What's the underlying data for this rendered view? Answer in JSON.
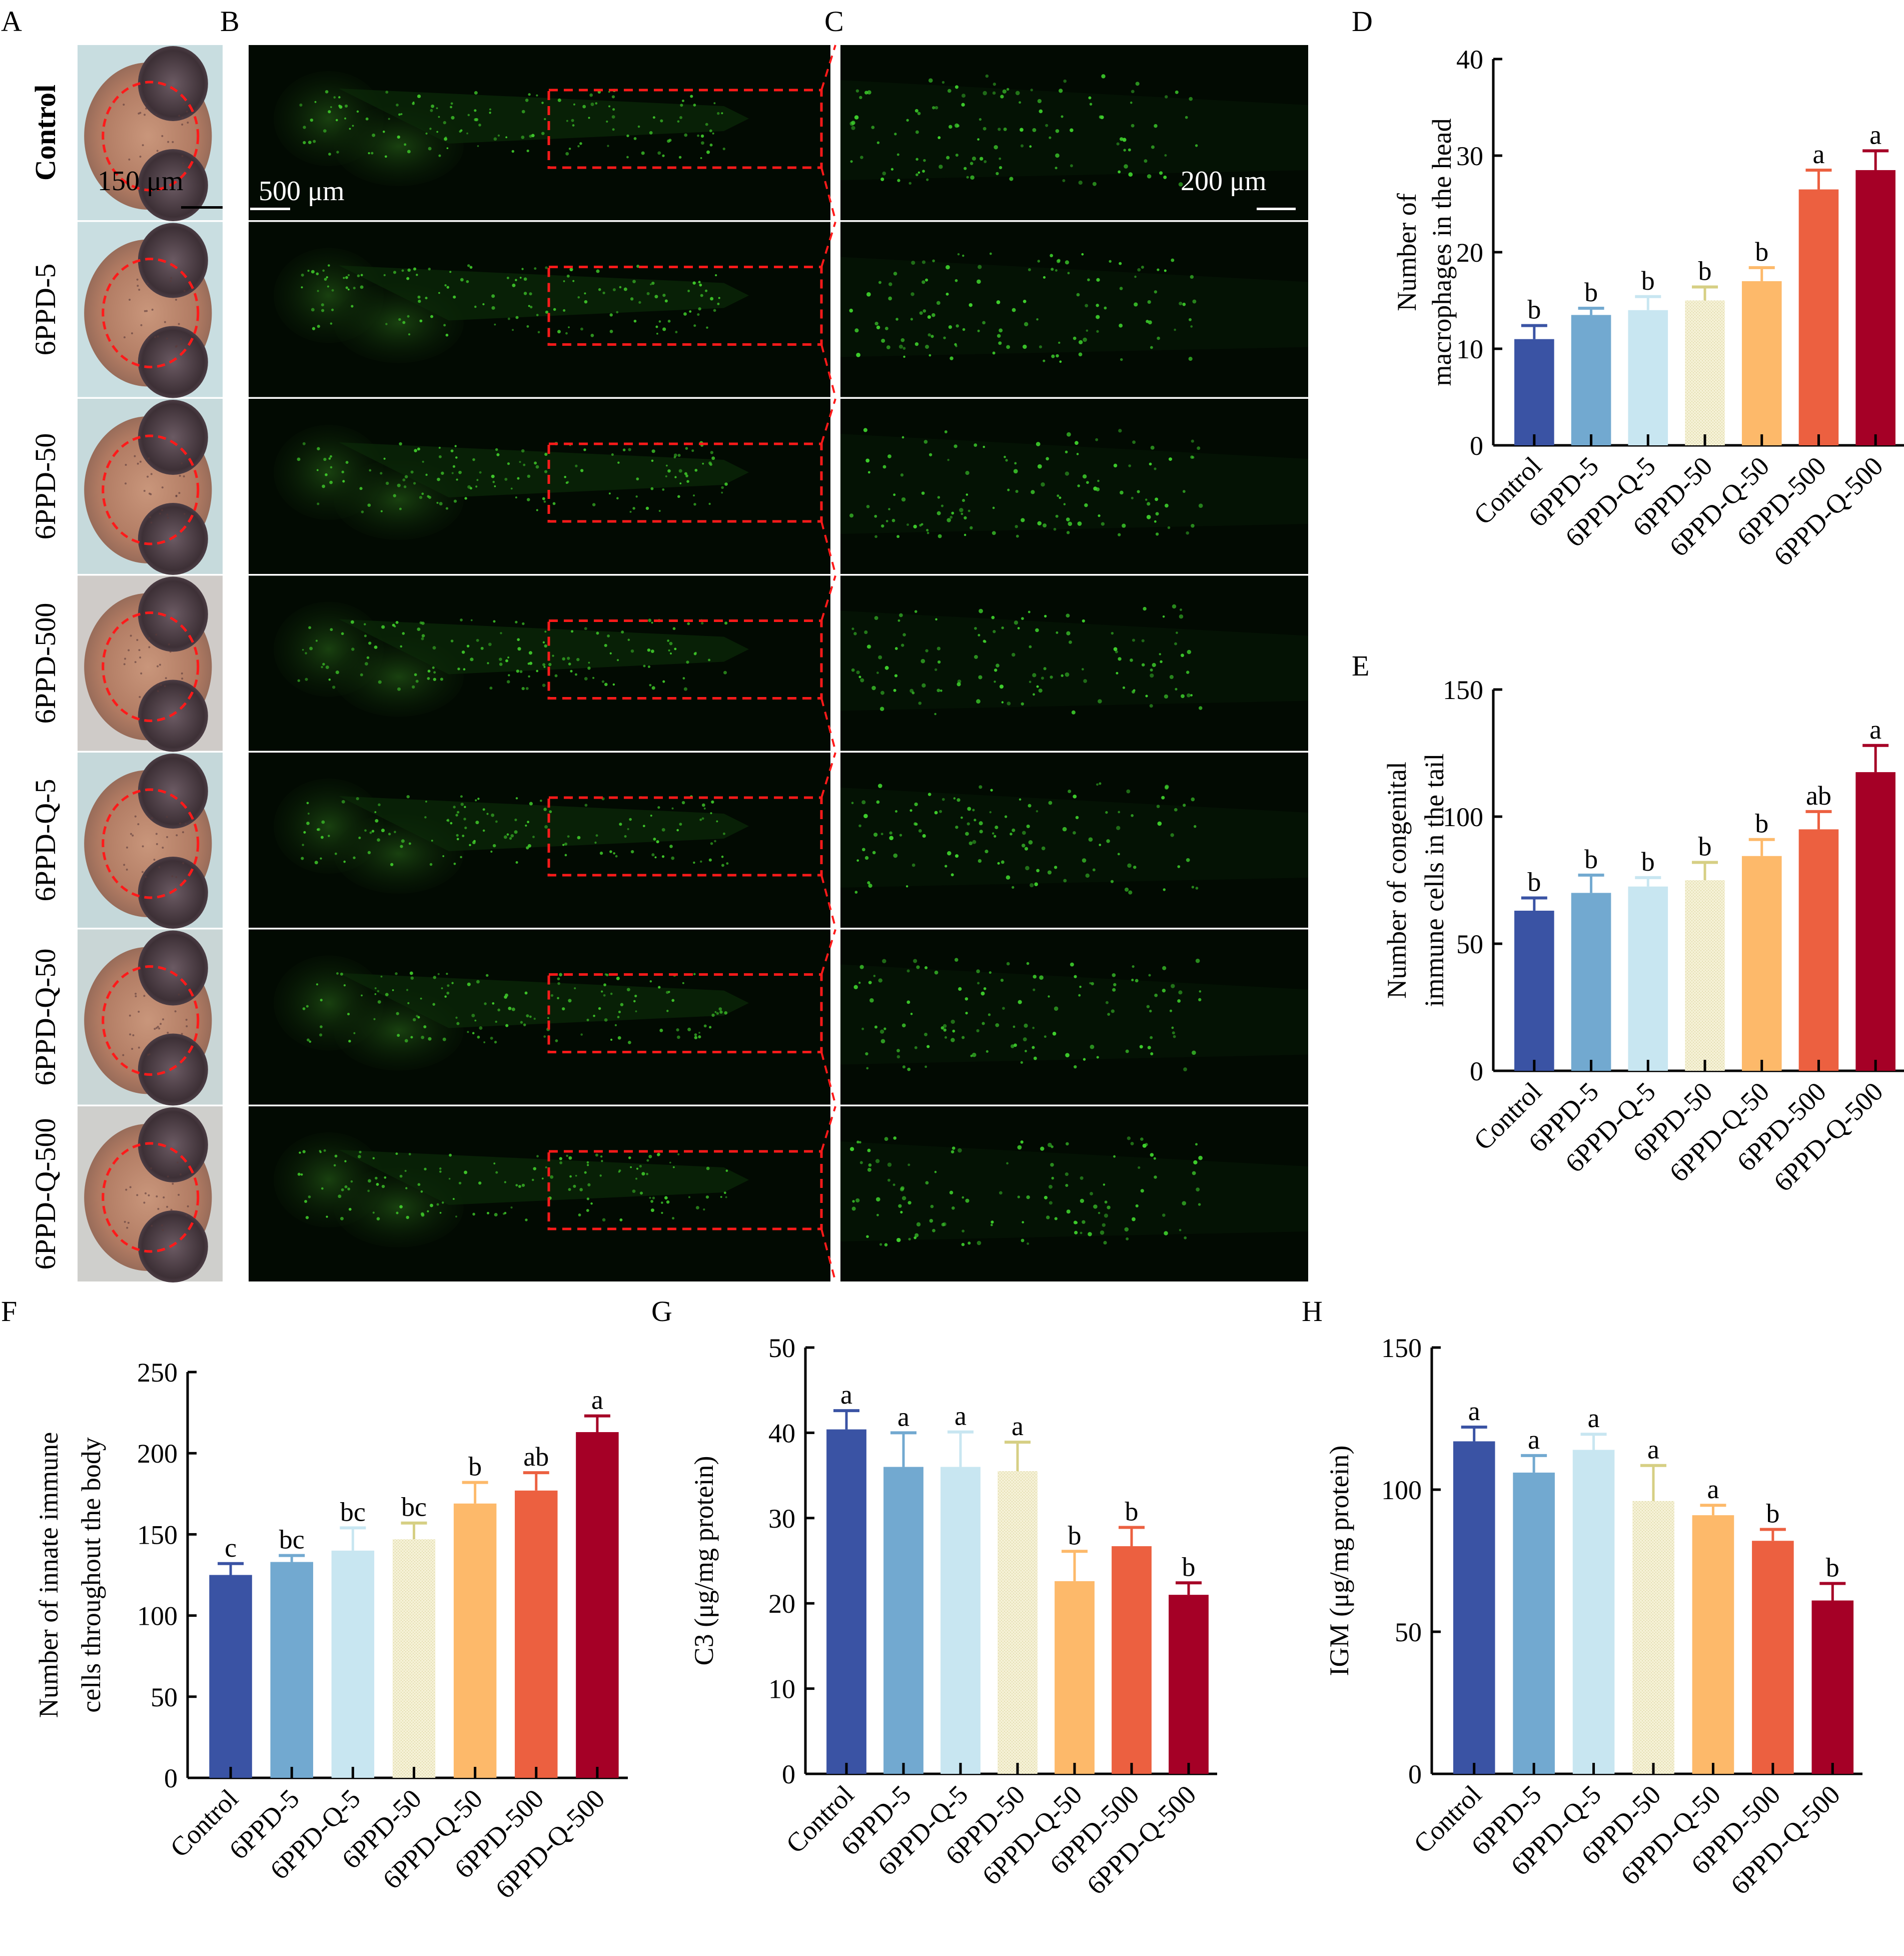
{
  "panel_labels": {
    "A": "A",
    "B": "B",
    "C": "C",
    "D": "D",
    "E": "E",
    "F": "F",
    "G": "G",
    "H": "H"
  },
  "groups": [
    "Control",
    "6PPD-5",
    "6PPD-50",
    "6PPD-500",
    "6PPD-Q-5",
    "6PPD-Q-50",
    "6PPD-Q-500"
  ],
  "scale_bars": {
    "A": "150 μm",
    "B": "500 μm",
    "C": "200 μm"
  },
  "bar_colors": [
    "#3a53a4",
    "#72a9d0",
    "#c8e6f1",
    "#f5f1d6",
    "#fdb96a",
    "#ec6040",
    "#a50026"
  ],
  "chart_data": [
    {
      "id": "D",
      "type": "bar",
      "title": "",
      "xlabel": "",
      "ylabel": [
        "Number of",
        "macrophages in the head"
      ],
      "categories": [
        "Control",
        "6PPD-5",
        "6PPD-Q-5",
        "6PPD-50",
        "6PPD-Q-50",
        "6PPD-500",
        "6PPD-Q-500"
      ],
      "values": [
        11.0,
        13.5,
        14.0,
        15.0,
        17.0,
        26.5,
        28.5
      ],
      "errors": [
        1.4,
        0.7,
        1.4,
        1.4,
        1.4,
        2.0,
        2.0
      ],
      "letters": [
        "b",
        "b",
        "b",
        "b",
        "b",
        "a",
        "a"
      ],
      "ylim": [
        0,
        40
      ],
      "yticks": [
        0,
        10,
        20,
        30,
        40
      ]
    },
    {
      "id": "E",
      "type": "bar",
      "title": "",
      "xlabel": "",
      "ylabel": [
        "Number of congenital",
        "immune cells in the tail"
      ],
      "categories": [
        "Control",
        "6PPD-5",
        "6PPD-Q-5",
        "6PPD-50",
        "6PPD-Q-50",
        "6PPD-500",
        "6PPD-Q-500"
      ],
      "values": [
        63,
        70,
        72.5,
        75,
        84.5,
        95,
        117.5
      ],
      "errors": [
        5,
        7,
        3.5,
        7,
        6.5,
        7,
        10.5
      ],
      "letters": [
        "b",
        "b",
        "b",
        "b",
        "b",
        "ab",
        "a"
      ],
      "ylim": [
        0,
        150
      ],
      "yticks": [
        0,
        50,
        100,
        150
      ]
    },
    {
      "id": "F",
      "type": "bar",
      "title": "",
      "xlabel": "",
      "ylabel": [
        "Number of innate immune",
        "cells throughout the body"
      ],
      "categories": [
        "Control",
        "6PPD-5",
        "6PPD-Q-5",
        "6PPD-50",
        "6PPD-Q-50",
        "6PPD-500",
        "6PPD-Q-500"
      ],
      "values": [
        125,
        133,
        140,
        147,
        169,
        177,
        213
      ],
      "errors": [
        7,
        4,
        14,
        10,
        13,
        11,
        10
      ],
      "letters": [
        "c",
        "bc",
        "bc",
        "bc",
        "b",
        "ab",
        "a"
      ],
      "ylim": [
        0,
        250
      ],
      "yticks": [
        0,
        50,
        100,
        150,
        200,
        250
      ]
    },
    {
      "id": "G",
      "type": "bar",
      "title": "",
      "xlabel": "",
      "ylabel": [
        "C3 (μg/mg protein)"
      ],
      "categories": [
        "Control",
        "6PPD-5",
        "6PPD-Q-5",
        "6PPD-50",
        "6PPD-Q-50",
        "6PPD-500",
        "6PPD-Q-500"
      ],
      "values": [
        40.4,
        36.0,
        36.0,
        35.5,
        22.6,
        26.7,
        21.0
      ],
      "errors": [
        2.2,
        4.0,
        4.1,
        3.4,
        3.5,
        2.2,
        1.4
      ],
      "letters": [
        "a",
        "a",
        "a",
        "a",
        "b",
        "b",
        "b"
      ],
      "ylim": [
        0,
        50
      ],
      "yticks": [
        0,
        10,
        20,
        30,
        40,
        50
      ]
    },
    {
      "id": "H",
      "type": "bar",
      "title": "",
      "xlabel": "",
      "ylabel": [
        "IGM (μg/mg protein)"
      ],
      "categories": [
        "Control",
        "6PPD-5",
        "6PPD-Q-5",
        "6PPD-50",
        "6PPD-Q-50",
        "6PPD-500",
        "6PPD-Q-500"
      ],
      "values": [
        117,
        106,
        114,
        96,
        91,
        82,
        61
      ],
      "errors": [
        5,
        6,
        5.5,
        12.5,
        3.5,
        4,
        6
      ],
      "letters": [
        "a",
        "a",
        "a",
        "a",
        "a",
        "b",
        "b"
      ],
      "ylim": [
        0,
        150
      ],
      "yticks": [
        0,
        50,
        100,
        150
      ]
    }
  ]
}
